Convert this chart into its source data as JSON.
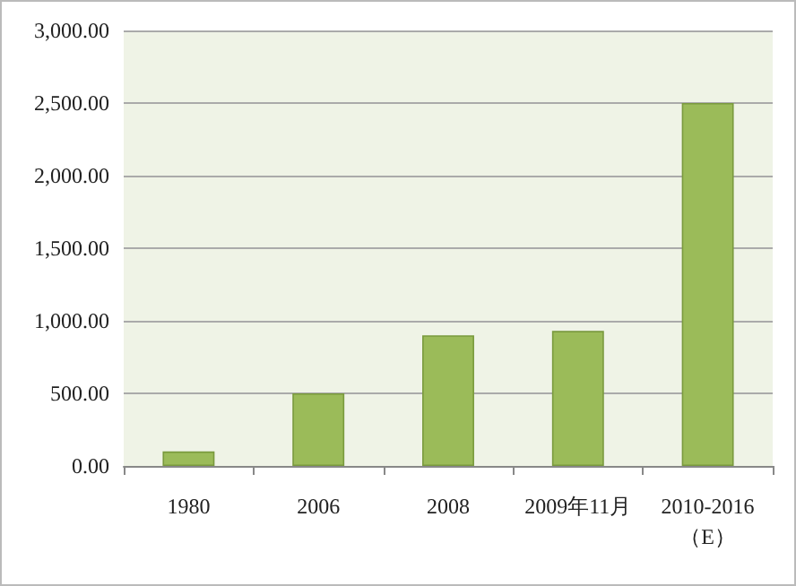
{
  "chart_data": {
    "type": "bar",
    "categories": [
      "1980",
      "2006",
      "2008",
      "2009年11月",
      "2010-2016（E）"
    ],
    "values": [
      100,
      500,
      900,
      930,
      2500
    ],
    "color": "#9bbb59",
    "ylim": [
      0,
      3000
    ],
    "yticks": [
      {
        "value": 0,
        "label": "0.00"
      },
      {
        "value": 500,
        "label": "500.00"
      },
      {
        "value": 1000,
        "label": "1,000.00"
      },
      {
        "value": 1500,
        "label": "1,500.00"
      },
      {
        "value": 2000,
        "label": "2,000.00"
      },
      {
        "value": 2500,
        "label": "2,500.00"
      },
      {
        "value": 3000,
        "label": "3,000.00"
      }
    ],
    "grid": "y"
  }
}
